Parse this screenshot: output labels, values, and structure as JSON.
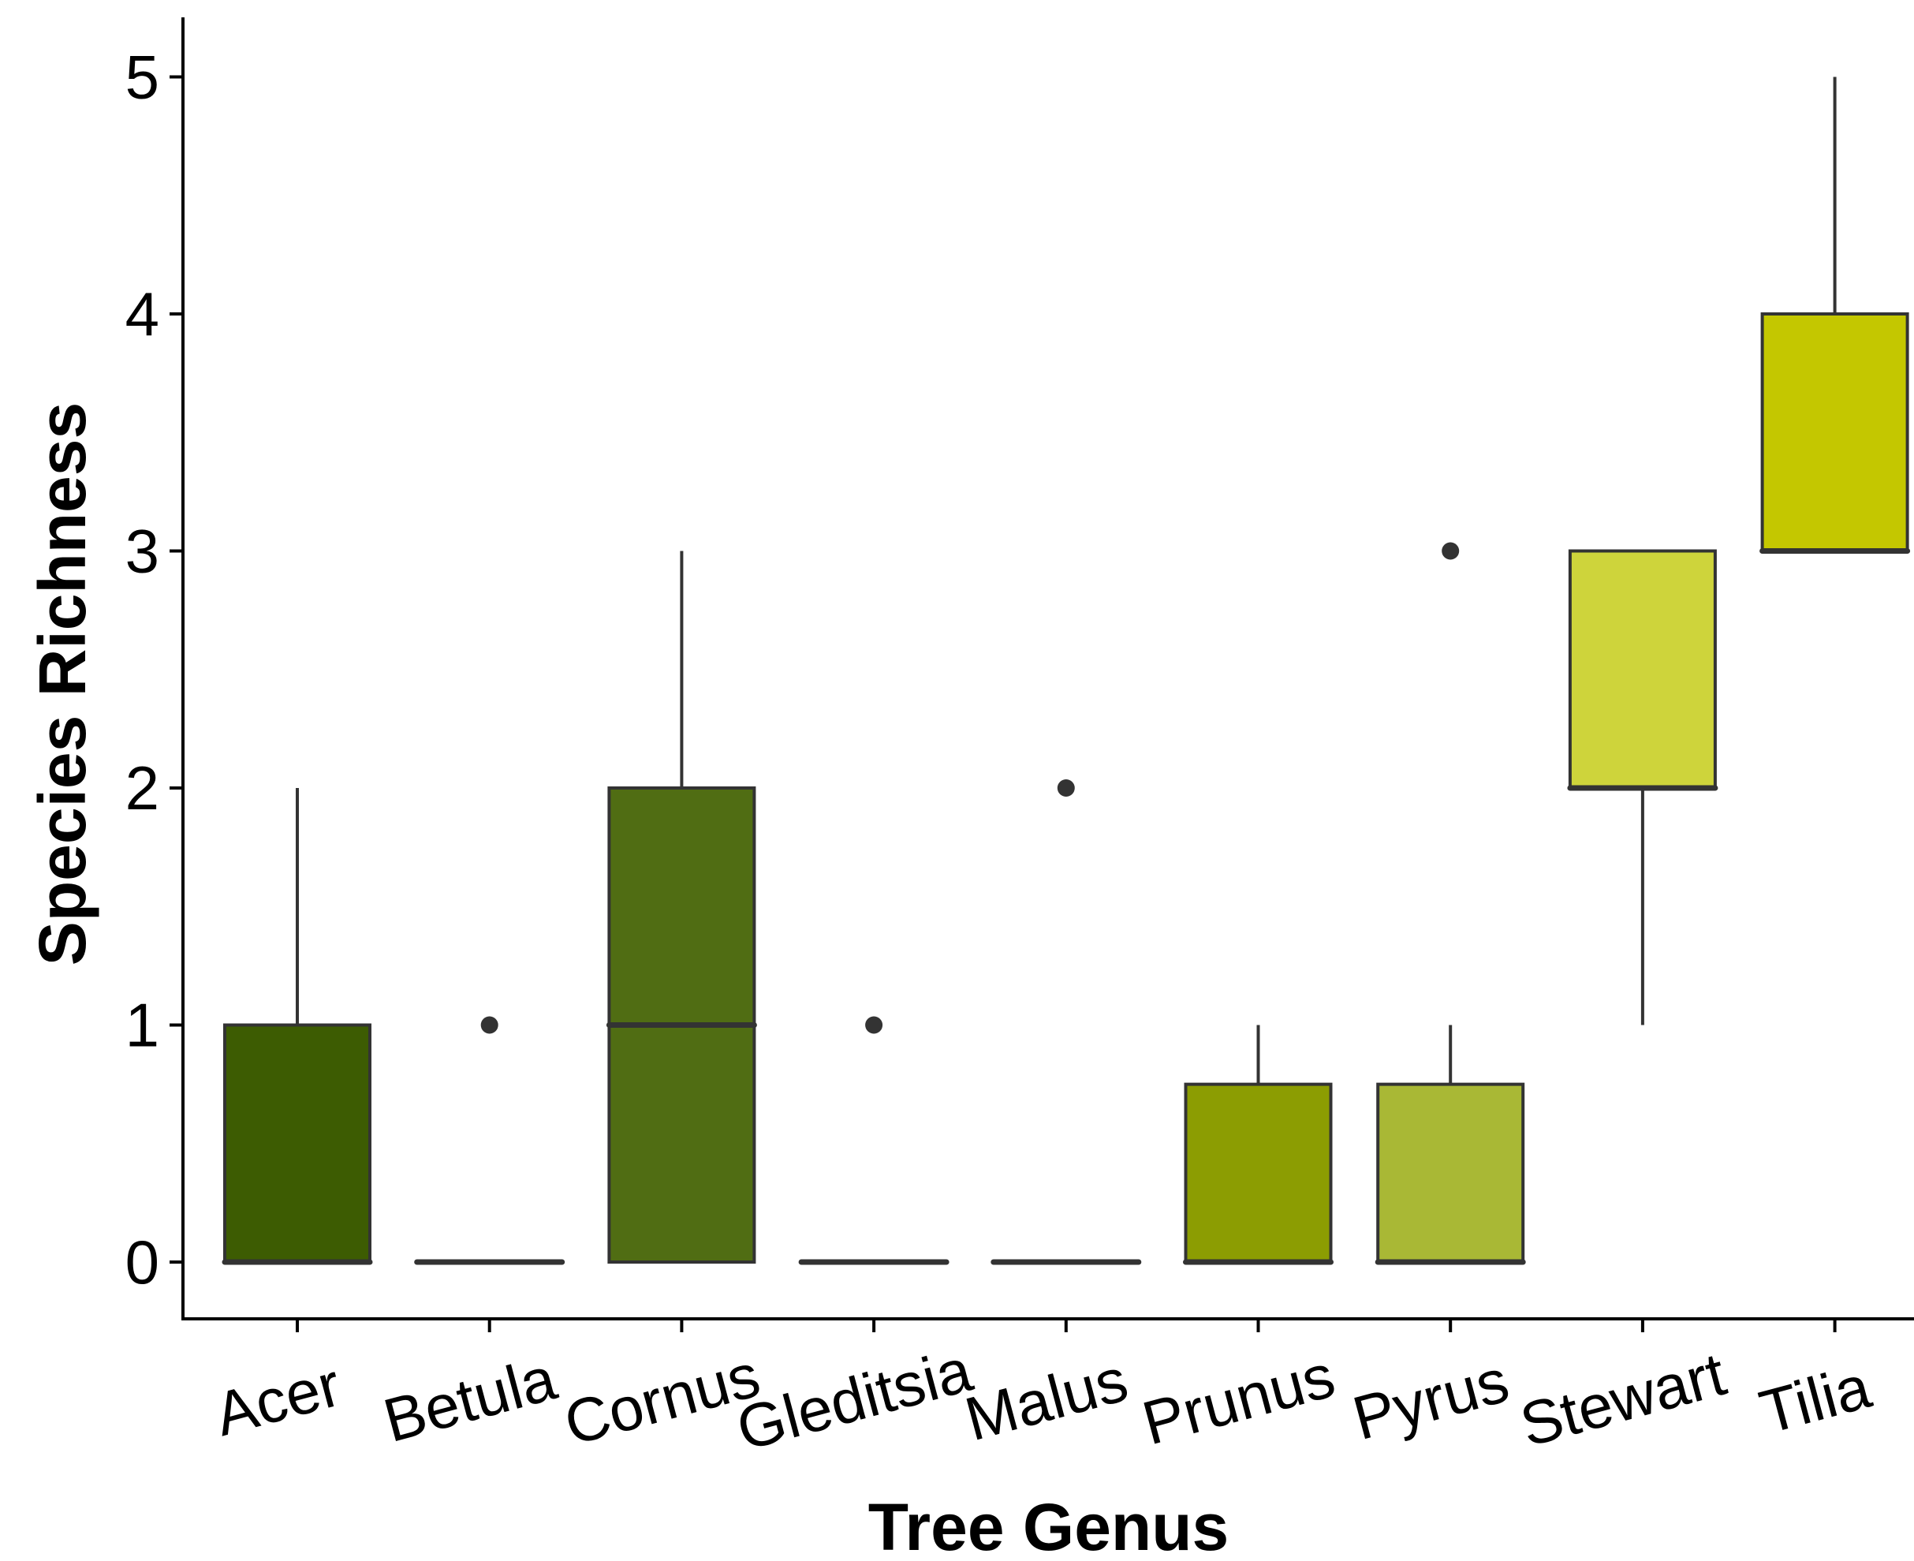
{
  "chart_data": {
    "type": "box",
    "title": "",
    "xlabel": "Tree Genus",
    "ylabel": "Species Richness",
    "ylim": [
      -0.25,
      5.25
    ],
    "yticks": [
      0,
      1,
      2,
      3,
      4,
      5
    ],
    "grid": false,
    "legend": "none",
    "categories": [
      "Acer",
      "Betula",
      "Cornus",
      "Gleditsia",
      "Malus",
      "Prunus",
      "Pyrus",
      "Stewart",
      "Tilia"
    ],
    "boxes": [
      {
        "category": "Acer",
        "min": 0,
        "q1": 0,
        "median": 0,
        "q3": 1,
        "max": 2,
        "outliers": [],
        "color": "#3d5c02"
      },
      {
        "category": "Betula",
        "min": 0,
        "q1": 0,
        "median": 0,
        "q3": 0,
        "max": 0,
        "outliers": [
          1
        ],
        "color": "#476608"
      },
      {
        "category": "Cornus",
        "min": 0,
        "q1": 0,
        "median": 1,
        "q3": 2,
        "max": 3,
        "outliers": [],
        "color": "#506d13"
      },
      {
        "category": "Gleditsia",
        "min": 0,
        "q1": 0,
        "median": 0,
        "q3": 0,
        "max": 0,
        "outliers": [
          1
        ],
        "color": "#5e7a0a"
      },
      {
        "category": "Malus",
        "min": 0,
        "q1": 0,
        "median": 0,
        "q3": 0,
        "max": 0,
        "outliers": [
          2
        ],
        "color": "#748a04"
      },
      {
        "category": "Prunus",
        "min": 0,
        "q1": 0,
        "median": 0,
        "q3": 0.75,
        "max": 1,
        "outliers": [],
        "color": "#8c9d02"
      },
      {
        "category": "Pyrus",
        "min": 0,
        "q1": 0,
        "median": 0,
        "q3": 0.75,
        "max": 1,
        "outliers": [
          3
        ],
        "color": "#a9b835"
      },
      {
        "category": "Stewart",
        "min": 1,
        "q1": 2,
        "median": 2,
        "q3": 3,
        "max": 3,
        "outliers": [],
        "color": "#ced43b"
      },
      {
        "category": "Tilia",
        "min": 3,
        "q1": 3,
        "median": 3,
        "q3": 4,
        "max": 5,
        "outliers": [],
        "color": "#c4c700"
      }
    ],
    "colors": {
      "axis": "#000000",
      "box_stroke": "#333333",
      "outlier": "#333333"
    }
  }
}
